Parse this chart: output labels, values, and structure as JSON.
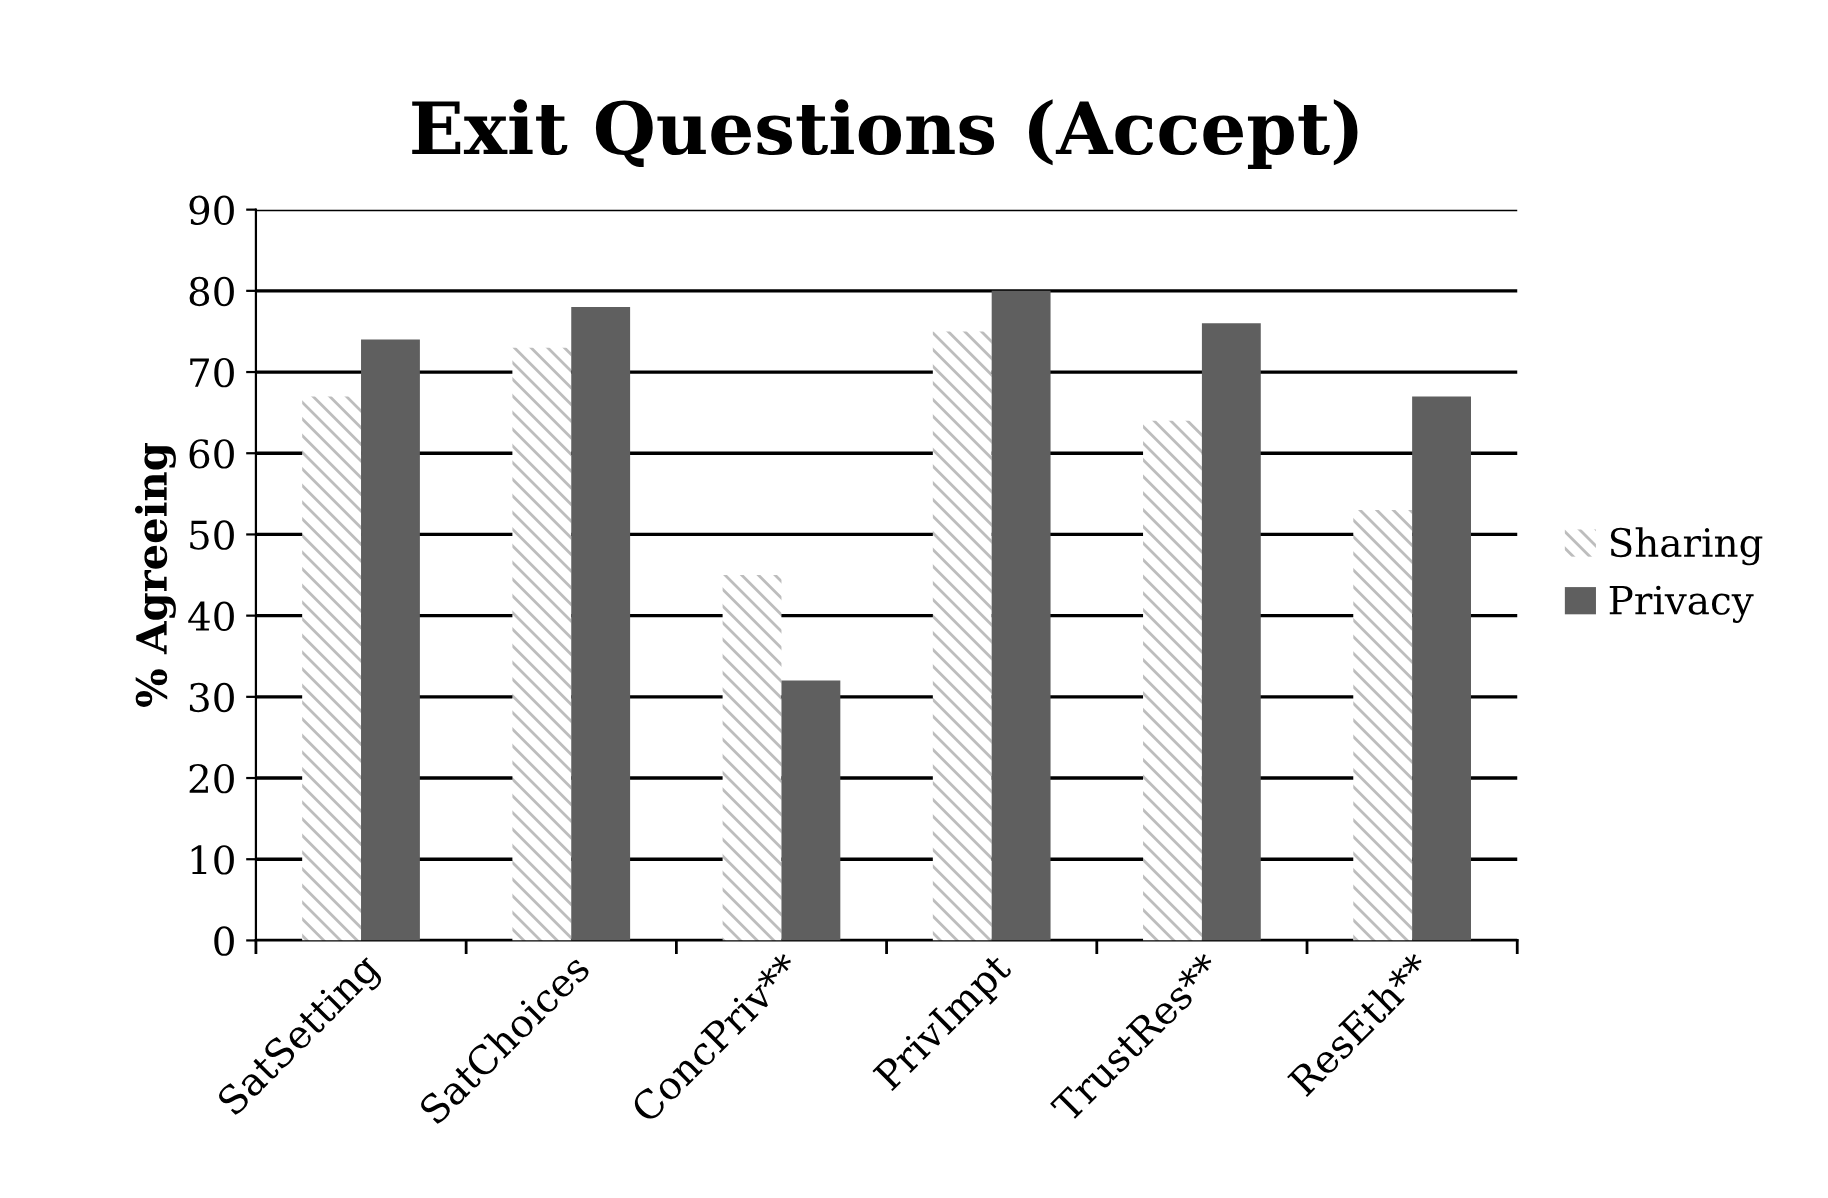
{
  "chart_data": {
    "type": "bar",
    "title": "Exit Questions (Accept)",
    "ylabel": "% Agreeing",
    "categories": [
      "SatSetting",
      "SatChoices",
      "ConcPriv**",
      "PrivImpt",
      "TrustRes**",
      "ResEth**"
    ],
    "series": [
      {
        "name": "Sharing",
        "color": "#bdbdbd",
        "values": [
          67,
          73,
          45,
          75,
          64,
          53
        ]
      },
      {
        "name": "Privacy",
        "color": "#5f5f5f",
        "values": [
          74,
          78,
          32,
          80,
          76,
          67
        ]
      }
    ],
    "ylim": [
      0,
      90
    ],
    "yticks": [
      0,
      10,
      20,
      30,
      40,
      50,
      60,
      70,
      80,
      90
    ],
    "grid": "y",
    "legend": "right"
  }
}
